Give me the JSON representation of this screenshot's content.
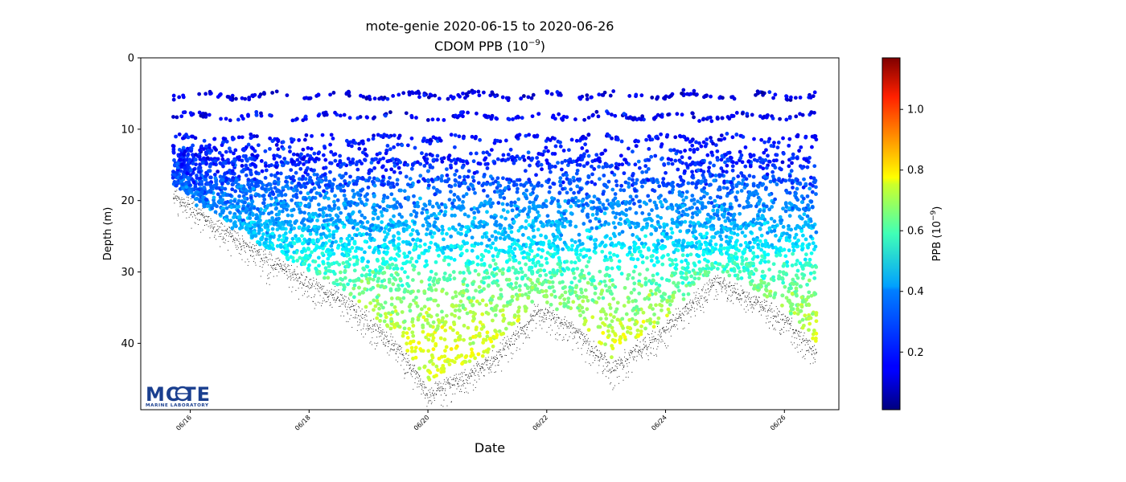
{
  "chart_data": {
    "type": "scatter",
    "title": "mote-genie 2020-06-15 to 2020-06-26",
    "subtitle": "CDOM PPB (10",
    "subtitle_exponent": "−9",
    "subtitle_close": ")",
    "xlabel": "Date",
    "ylabel": "Depth (m)",
    "x_range": [
      "2020-06-15T04:00",
      "2020-06-26T22:00"
    ],
    "y_range": [
      0,
      49.3
    ],
    "y_inverted": true,
    "y_ticks": [
      0,
      10,
      20,
      30,
      40
    ],
    "x_ticks": [
      "06/16",
      "06/18",
      "06/20",
      "06/22",
      "06/24",
      "06/26"
    ],
    "x_tick_dates": [
      "2020-06-16",
      "2020-06-18",
      "2020-06-20",
      "2020-06-22",
      "2020-06-24",
      "2020-06-26"
    ],
    "data_start": "2020-06-15T17:00",
    "data_end": "2020-06-26T13:00",
    "colormap": "jet",
    "colorbar": {
      "label": "PPB (10",
      "label_exponent": "−9",
      "label_close": ")",
      "range": [
        0.01,
        1.17
      ],
      "ticks": [
        0.2,
        0.4,
        0.6,
        0.8,
        1.0
      ],
      "tick_labels": [
        "0.2",
        "0.4",
        "0.6",
        "0.8",
        "1.0"
      ]
    },
    "grid": false,
    "series": [
      {
        "name": "CDOM",
        "bands_depth_m": [
          5.3,
          8.2,
          11.3,
          14.5,
          17.5,
          20.7,
          23.5,
          26.5
        ],
        "mean_ppb_by_depth": [
          [
            5,
            0.12
          ],
          [
            10,
            0.16
          ],
          [
            15,
            0.2
          ],
          [
            20,
            0.3
          ],
          [
            25,
            0.38
          ],
          [
            30,
            0.52
          ],
          [
            35,
            0.62
          ],
          [
            40,
            0.7
          ],
          [
            45,
            0.68
          ]
        ]
      },
      {
        "name": "Bottom",
        "points": [
          [
            "2020-06-15T17:00",
            19.2
          ],
          [
            "2020-06-17T06:00",
            28.0
          ],
          [
            "2020-06-18T12:00",
            33.5
          ],
          [
            "2020-06-19T12:00",
            40.5
          ],
          [
            "2020-06-20T00:00",
            47.0
          ],
          [
            "2020-06-21T00:00",
            43.0
          ],
          [
            "2020-06-21T20:00",
            35.5
          ],
          [
            "2020-06-22T12:00",
            38.0
          ],
          [
            "2020-06-23T02:00",
            43.5
          ],
          [
            "2020-06-24T00:00",
            38.0
          ],
          [
            "2020-06-24T20:00",
            31.0
          ],
          [
            "2020-06-25T12:00",
            34.0
          ],
          [
            "2020-06-26T00:00",
            36.5
          ],
          [
            "2020-06-26T13:00",
            41.5
          ]
        ]
      }
    ]
  },
  "logo": {
    "brand": "MOTE",
    "tagline": "MARINE LABORATORY"
  },
  "colors": {
    "bottom_marker": "#000000",
    "logo_blue": "#1a3f8f",
    "axes": "#000000"
  }
}
